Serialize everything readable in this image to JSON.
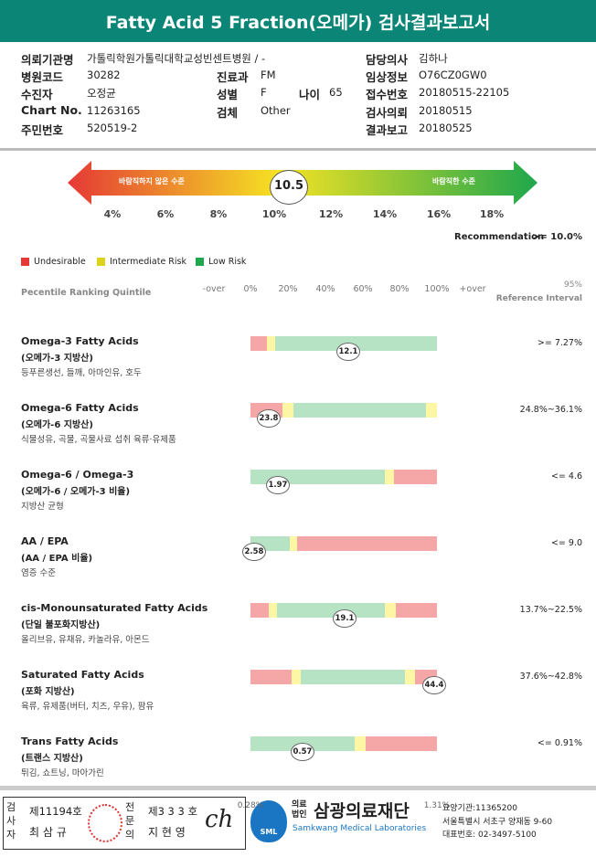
{
  "header": {
    "title": "Fatty Acid 5 Fraction(오메가) 검사결과보고서"
  },
  "info": {
    "left": [
      {
        "label": "의뢰기관명",
        "value": "가톨릭학원가톨릭대학교성빈센트병원 / -"
      },
      {
        "label": "병원코드",
        "value": "30282"
      },
      {
        "label": "수진자",
        "value": "오정균"
      },
      {
        "label": "Chart No.",
        "value": "11263165"
      },
      {
        "label": "주민번호",
        "value": "520519-2"
      }
    ],
    "middle": [
      {
        "label": "진료과",
        "value": "FM"
      },
      {
        "label": "성별",
        "value": "F"
      },
      {
        "label": "나이",
        "value": "65"
      },
      {
        "label": "검체",
        "value": "Other"
      }
    ],
    "right": [
      {
        "label": "담당의사",
        "value": "김하나"
      },
      {
        "label": "임상정보",
        "value": "O76CZ0GW0"
      },
      {
        "label": "접수번호",
        "value": "20180515-22105"
      },
      {
        "label": "검사의뢰",
        "value": "20180515"
      },
      {
        "label": "결과보고",
        "value": "20180525"
      }
    ]
  },
  "gauge": {
    "low_label": "바람직하지 않은 수준",
    "high_label": "바람직한 수준",
    "value": 10.5,
    "ticks": [
      "4%",
      "6%",
      "8%",
      "10%",
      "12%",
      "14%",
      "16%",
      "18%"
    ]
  },
  "recommendation": {
    "label": "Recommendation",
    "value": ">= 10.0%"
  },
  "legend": [
    "Undesirable",
    "Intermediate Risk",
    "Low Risk"
  ],
  "scale": {
    "title": "Pecentile Ranking Quintile",
    "labels": [
      "-over",
      "0%",
      "20%",
      "40%",
      "60%",
      "80%",
      "100%",
      "+over"
    ],
    "reference_header": [
      "95%",
      "Reference Interval"
    ]
  },
  "items": [
    {
      "name": "Omega-3 Fatty Acids",
      "korean": "(오메가-3 지방산)",
      "foods": "등푸른생선, 들깨, 아마인유, 호두",
      "result": 12.1,
      "reference": ">= 7.27%"
    },
    {
      "name": "Omega-6 Fatty Acids",
      "korean": "(오메가-6 지방산)",
      "foods": "식물성유, 곡물, 곡물사료 섭취 육류·유제품",
      "result": 23.8,
      "reference": "24.8%~36.1%"
    },
    {
      "name": "Omega-6 / Omega-3",
      "korean": "(오메가-6 / 오메가-3 비율)",
      "foods": "지방산 균형",
      "result": 1.97,
      "reference": "<= 4.6"
    },
    {
      "name": "AA / EPA",
      "korean": "(AA / EPA 비율)",
      "foods": "염증 수준",
      "result": 2.58,
      "reference": "<= 9.0"
    },
    {
      "name": "cis-Monounsaturated Fatty Acids",
      "korean": "(단일 불포화지방산)",
      "foods": "올리브유, 유채유, 카놀라유, 아몬드",
      "result": 19.1,
      "reference": "13.7%~22.5%"
    },
    {
      "name": "Saturated Fatty Acids",
      "korean": "(포화 지방산)",
      "foods": "육류, 유제품(버터, 치즈, 우유), 팜유",
      "result": 44.4,
      "reference": "37.6%~42.8%"
    },
    {
      "name": "Trans Fatty Acids",
      "korean": "(트랜스 지방산)",
      "foods": "튀김, 쇼트닝, 마아가린",
      "result": 0.57,
      "reference": "<= 0.91%",
      "range": [
        "0.28%",
        "1.31%"
      ]
    }
  ],
  "footer": {
    "inspector": {
      "role": "검사자",
      "license": "제11194호",
      "name": "최 삼 규"
    },
    "specialist": {
      "role": "전문의",
      "license": "제3 3 3 호",
      "name": "지 현 영"
    },
    "org": {
      "logo": "SML",
      "prefix": "의료법인",
      "name": "삼광의료재단",
      "english": "Samkwang Medical Laboratories",
      "code": "요양기관:11365200",
      "address": "서울특별시 서초구 양재동 9-60",
      "phone": "대표번호: 02-3497-5100"
    }
  }
}
